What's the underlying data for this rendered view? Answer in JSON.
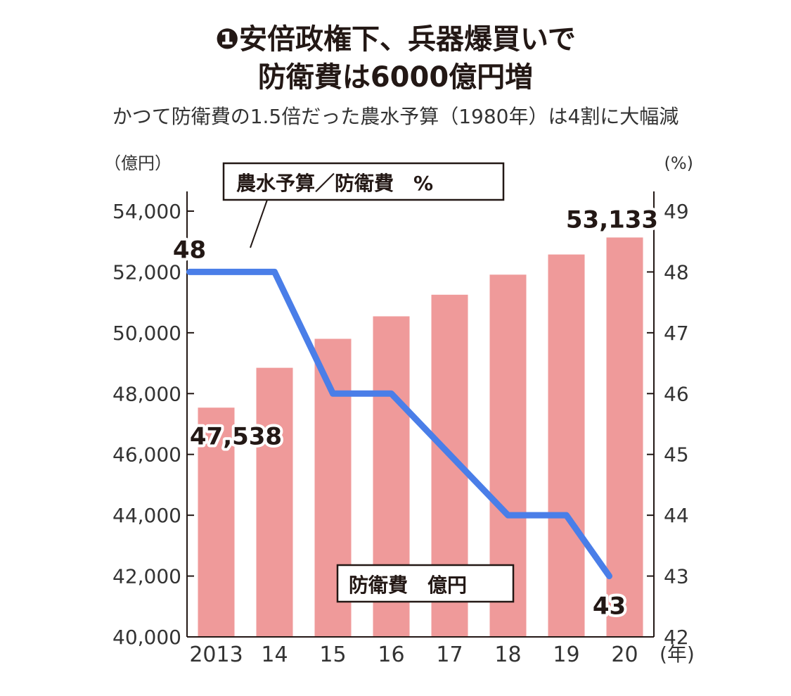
{
  "title_line1": "❶安倍政権下、兵器爆買いで",
  "title_line2": "防衛費は6000億円増",
  "subtitle": "かつて防衛費の1.5倍だった農水予算（1980年）は4割に大幅減",
  "colors": {
    "bar": "#ef9a9a",
    "line": "#4a7ee8",
    "axis": "#231815"
  },
  "chart_data": {
    "type": "bar",
    "categories": [
      "2013",
      "14",
      "15",
      "16",
      "17",
      "18",
      "19",
      "20"
    ],
    "x_unit": "(年)",
    "left_axis": {
      "unit": "（億円）",
      "range": [
        40000,
        54000
      ],
      "ticks": [
        "40,000",
        "42,000",
        "44,000",
        "46,000",
        "48,000",
        "50,000",
        "52,000",
        "54,000"
      ]
    },
    "right_axis": {
      "unit": "(%)",
      "range": [
        42,
        49
      ],
      "ticks": [
        "42",
        "43",
        "44",
        "45",
        "46",
        "47",
        "48",
        "49"
      ]
    },
    "series": [
      {
        "name": "防衛費　億円",
        "type": "bar",
        "axis": "left",
        "values": [
          47538,
          48848,
          49801,
          50541,
          51251,
          51911,
          52574,
          53133
        ]
      },
      {
        "name": "農水予算／防衛費　%",
        "type": "line",
        "axis": "right",
        "values": [
          48,
          48,
          46,
          46,
          45,
          44,
          44,
          43
        ]
      }
    ],
    "annotations": [
      {
        "label": "47,538",
        "series": "防衛費　億円",
        "index": 0
      },
      {
        "label": "53,133",
        "series": "防衛費　億円",
        "index": 7
      },
      {
        "label": "48",
        "series": "農水予算／防衛費　%",
        "index": 0
      },
      {
        "label": "43",
        "series": "農水予算／防衛費　%",
        "index": 7
      }
    ],
    "grid": false
  }
}
